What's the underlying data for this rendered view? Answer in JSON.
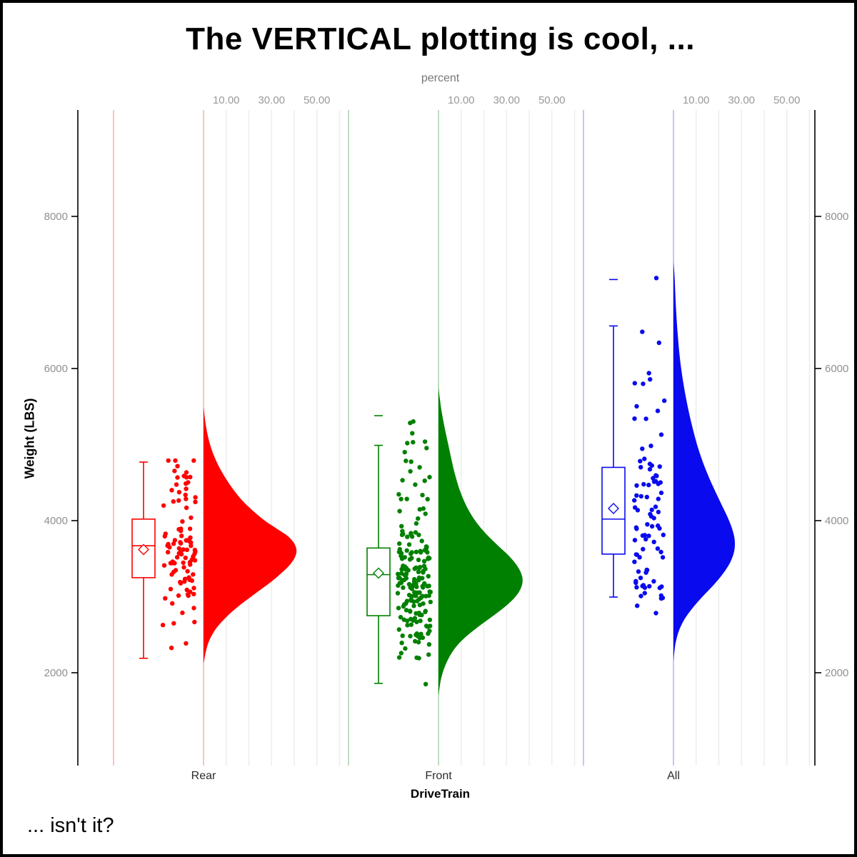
{
  "title": "The VERTICAL plotting is cool, ...",
  "footnote": "... isn't it?",
  "chart_data": {
    "type": "raincloud (half-violin + box plot + jittered points)",
    "orientation": "vertical",
    "title": "The VERTICAL plotting is cool, ...",
    "footnote": "... isn't it?",
    "grid": "light vertical percent gridlines per group",
    "x_axis": {
      "label": "DriveTrain",
      "categories": [
        "Rear",
        "Front",
        "All"
      ]
    },
    "y_axis": {
      "label": "Weight (LBS)",
      "tick_labels": [
        "2000",
        "4000",
        "6000",
        "8000"
      ],
      "tick_values": [
        2000,
        4000,
        6000,
        8000
      ],
      "range": [
        780,
        9410
      ],
      "sides": [
        "left",
        "right"
      ]
    },
    "top_axis": {
      "label": "percent",
      "tick_labels": [
        "10.00",
        "30.00",
        "50.00"
      ],
      "tick_values": [
        10,
        30,
        50
      ],
      "gridline_values": [
        10,
        20,
        30,
        40,
        50,
        60
      ]
    },
    "series": [
      {
        "category": "Rear",
        "color": "#FE0000",
        "pale_color": "#FFB3B3",
        "box": {
          "whisker_low": 2190,
          "q1": 3250,
          "median": 3670,
          "mean": 3620,
          "q3": 4020,
          "whisker_high": 4770
        },
        "outliers": [],
        "density_points": [
          [
            5500,
            0
          ],
          [
            5300,
            0.8
          ],
          [
            5100,
            2
          ],
          [
            4900,
            4
          ],
          [
            4700,
            7
          ],
          [
            4500,
            11
          ],
          [
            4300,
            16
          ],
          [
            4150,
            21
          ],
          [
            4000,
            27
          ],
          [
            3900,
            32
          ],
          [
            3800,
            37
          ],
          [
            3700,
            40
          ],
          [
            3600,
            41
          ],
          [
            3500,
            40
          ],
          [
            3400,
            37.5
          ],
          [
            3300,
            34
          ],
          [
            3200,
            30
          ],
          [
            3100,
            25.5
          ],
          [
            3000,
            21
          ],
          [
            2900,
            16.5
          ],
          [
            2800,
            12.5
          ],
          [
            2700,
            9
          ],
          [
            2600,
            6
          ],
          [
            2500,
            3.8
          ],
          [
            2400,
            2.2
          ],
          [
            2300,
            1.2
          ],
          [
            2200,
            0.5
          ],
          [
            2120,
            0
          ]
        ],
        "jitter": {
          "n": 100,
          "seed": 7,
          "clamp": [
            2160,
            4790
          ],
          "clusters": [
            [
              0.78,
              3600,
              380
            ],
            [
              0.12,
              4400,
              220
            ],
            [
              0.06,
              2600,
              200
            ],
            [
              0.04,
              4700,
              90
            ]
          ],
          "extra": []
        }
      },
      {
        "category": "Front",
        "color": "#008000",
        "pale_color": "#AFD5AF",
        "box": {
          "whisker_low": 1860,
          "q1": 2750,
          "median": 3290,
          "mean": 3310,
          "q3": 3640,
          "whisker_high": 4990
        },
        "outliers": [
          5380
        ],
        "density_points": [
          [
            5750,
            0
          ],
          [
            5600,
            0.6
          ],
          [
            5450,
            1.3
          ],
          [
            5300,
            2.2
          ],
          [
            5150,
            3.2
          ],
          [
            5000,
            4.3
          ],
          [
            4850,
            5.4
          ],
          [
            4700,
            6.5
          ],
          [
            4550,
            7.8
          ],
          [
            4400,
            9.4
          ],
          [
            4250,
            11.4
          ],
          [
            4100,
            14
          ],
          [
            3950,
            17.4
          ],
          [
            3800,
            21.8
          ],
          [
            3650,
            27
          ],
          [
            3550,
            30.6
          ],
          [
            3450,
            33.6
          ],
          [
            3350,
            35.8
          ],
          [
            3250,
            37
          ],
          [
            3150,
            36.8
          ],
          [
            3050,
            35.2
          ],
          [
            2950,
            32.4
          ],
          [
            2850,
            28.6
          ],
          [
            2750,
            24.2
          ],
          [
            2650,
            19.6
          ],
          [
            2550,
            15.2
          ],
          [
            2450,
            11.2
          ],
          [
            2350,
            8
          ],
          [
            2250,
            5.6
          ],
          [
            2150,
            3.8
          ],
          [
            2050,
            2.4
          ],
          [
            1950,
            1.4
          ],
          [
            1850,
            0.7
          ],
          [
            1700,
            0
          ]
        ],
        "jitter": {
          "n": 190,
          "seed": 11,
          "clamp": [
            1850,
            5390
          ],
          "clusters": [
            [
              0.66,
              3250,
              350
            ],
            [
              0.14,
              2500,
              220
            ],
            [
              0.12,
              4200,
              280
            ],
            [
              0.08,
              5050,
              180
            ]
          ],
          "extra": []
        }
      },
      {
        "category": "All",
        "color": "#0A0AEE",
        "pale_color": "#B9B9EF",
        "box": {
          "whisker_low": 2995,
          "q1": 3560,
          "median": 4020,
          "mean": 4160,
          "q3": 4700,
          "whisker_high": 6560
        },
        "outliers": [
          7170
        ],
        "density_points": [
          [
            7400,
            0
          ],
          [
            7200,
            0.5
          ],
          [
            7000,
            0.8
          ],
          [
            6800,
            1.1
          ],
          [
            6600,
            1.5
          ],
          [
            6400,
            2
          ],
          [
            6200,
            2.6
          ],
          [
            6000,
            3.4
          ],
          [
            5800,
            4.4
          ],
          [
            5600,
            5.6
          ],
          [
            5400,
            7
          ],
          [
            5200,
            8.6
          ],
          [
            5000,
            10.4
          ],
          [
            4800,
            12.6
          ],
          [
            4600,
            15.2
          ],
          [
            4400,
            18.2
          ],
          [
            4200,
            21.4
          ],
          [
            4050,
            23.8
          ],
          [
            3900,
            25.8
          ],
          [
            3750,
            27
          ],
          [
            3600,
            26.8
          ],
          [
            3450,
            25
          ],
          [
            3300,
            21.8
          ],
          [
            3150,
            17.6
          ],
          [
            3000,
            12.8
          ],
          [
            2850,
            8.4
          ],
          [
            2700,
            4.8
          ],
          [
            2550,
            2.4
          ],
          [
            2400,
            1
          ],
          [
            2250,
            0.3
          ],
          [
            2150,
            0
          ]
        ],
        "jitter": {
          "n": 88,
          "seed": 13,
          "clamp": [
            2200,
            6600
          ],
          "clusters": [
            [
              0.58,
              3750,
              400
            ],
            [
              0.16,
              4600,
              300
            ],
            [
              0.12,
              5400,
              350
            ],
            [
              0.1,
              3050,
              150
            ],
            [
              0.04,
              6300,
              250
            ]
          ],
          "extra": [
            [
              -24,
              7190
            ]
          ]
        }
      }
    ],
    "layout_hints": {
      "legend": "none",
      "axis_line_color": "#000000",
      "tick_label_color": "#8F8F8F",
      "gridline_color": "#EDEDED",
      "category_label_color": "#2B2B2B"
    }
  }
}
